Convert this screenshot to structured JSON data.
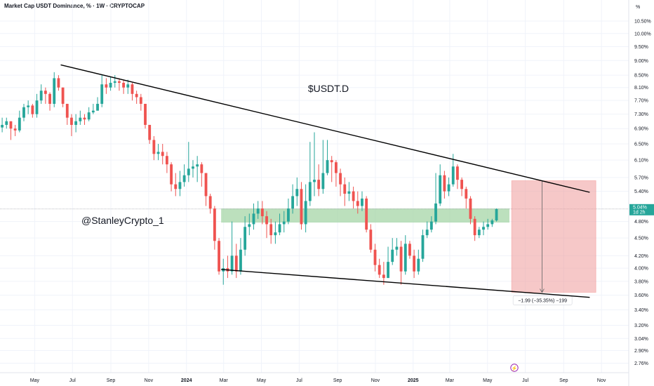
{
  "header": {
    "title": "Market Cap USDT Dominance, % · 1W · CRYPTOCAP"
  },
  "price_axis": {
    "unit_label": "%"
  },
  "annotations": {
    "title": "$USDT.D",
    "handle": "@StanleyCrypto_1",
    "measure_label": "−1.99 (−35.35%) −199"
  },
  "last_price": {
    "value": "5.04%",
    "countdown": "1d 2h"
  },
  "colors": {
    "up": "#26a69a",
    "down": "#ef5350",
    "zone": "#a5d6a7",
    "target": "#ef9a9a",
    "trendline": "#000000"
  },
  "icons": {
    "bottom_marker": "lightning-icon"
  },
  "chart_data": {
    "type": "candlestick",
    "title": "Market Cap USDT Dominance",
    "interval": "1W",
    "y_scale": "log",
    "y_range": [
      2.66,
      11.4
    ],
    "y_ticks": [
      10.5,
      10.0,
      9.5,
      9.0,
      8.5,
      8.1,
      7.7,
      7.3,
      6.9,
      6.5,
      6.1,
      5.7,
      5.4,
      4.8,
      4.5,
      4.2,
      4.0,
      3.8,
      3.6,
      3.4,
      3.2,
      3.04,
      2.9,
      2.76
    ],
    "y_tick_labels": [
      "10.50%",
      "10.00%",
      "9.50%",
      "9.00%",
      "8.50%",
      "8.10%",
      "7.70%",
      "7.30%",
      "6.90%",
      "6.50%",
      "6.10%",
      "5.70%",
      "5.40%",
      "4.80%",
      "4.50%",
      "4.20%",
      "4.00%",
      "3.80%",
      "3.60%",
      "3.40%",
      "3.20%",
      "3.04%",
      "2.90%",
      "2.76%"
    ],
    "x_range": [
      "2023-03-06",
      "2025-12-15"
    ],
    "x_ticks": [
      {
        "label": "May",
        "date": "2023-05-01",
        "bold": false
      },
      {
        "label": "Jul",
        "date": "2023-07-01",
        "bold": false
      },
      {
        "label": "Sep",
        "date": "2023-09-01",
        "bold": false
      },
      {
        "label": "Nov",
        "date": "2023-11-01",
        "bold": false
      },
      {
        "label": "2024",
        "date": "2024-01-01",
        "bold": true
      },
      {
        "label": "Mar",
        "date": "2024-03-01",
        "bold": false
      },
      {
        "label": "May",
        "date": "2024-05-01",
        "bold": false
      },
      {
        "label": "Jul",
        "date": "2024-07-01",
        "bold": false
      },
      {
        "label": "Sep",
        "date": "2024-09-01",
        "bold": false
      },
      {
        "label": "Nov",
        "date": "2024-11-01",
        "bold": false
      },
      {
        "label": "2025",
        "date": "2025-01-01",
        "bold": true
      },
      {
        "label": "Mar",
        "date": "2025-03-01",
        "bold": false
      },
      {
        "label": "May",
        "date": "2025-05-01",
        "bold": false
      },
      {
        "label": "Jul",
        "date": "2025-07-01",
        "bold": false
      },
      {
        "label": "Sep",
        "date": "2025-09-01",
        "bold": false
      },
      {
        "label": "Nov",
        "date": "2025-11-01",
        "bold": false
      }
    ],
    "candles_start": "2023-03-06",
    "candles_step_days": 7,
    "closes": [
      7.0,
      7.1,
      6.9,
      6.85,
      7.2,
      7.5,
      7.55,
      7.3,
      7.7,
      8.0,
      7.9,
      7.6,
      8.4,
      8.1,
      7.6,
      7.2,
      7.0,
      7.1,
      7.2,
      7.15,
      7.35,
      7.4,
      7.6,
      8.2,
      8.1,
      8.25,
      8.3,
      8.25,
      8.1,
      8.2,
      7.9,
      7.8,
      7.6,
      7.0,
      6.6,
      6.25,
      6.3,
      6.2,
      6.0,
      5.55,
      5.45,
      5.6,
      5.75,
      5.9,
      5.95,
      6.0,
      5.8,
      5.3,
      5.05,
      4.45,
      3.95,
      4.0,
      3.95,
      4.2,
      3.95,
      4.3,
      4.7,
      4.75,
      4.95,
      5.05,
      4.9,
      4.75,
      4.55,
      4.6,
      4.75,
      4.8,
      5.05,
      5.3,
      5.45,
      4.75,
      5.2,
      5.6,
      5.65,
      5.45,
      5.8,
      6.1,
      6.05,
      5.8,
      5.55,
      5.35,
      5.4,
      5.2,
      5.1,
      5.25,
      4.65,
      4.3,
      4.05,
      3.9,
      3.85,
      4.1,
      4.3,
      4.35,
      3.95,
      4.4,
      4.2,
      3.95,
      4.15,
      4.55,
      4.65,
      4.8,
      5.15,
      5.75,
      5.4,
      5.55,
      5.95,
      5.65,
      5.45,
      5.25,
      4.85,
      4.55,
      4.65,
      4.7,
      4.75,
      4.82,
      5.04
    ],
    "highs": [
      7.2,
      7.2,
      7.1,
      7.0,
      7.4,
      7.6,
      7.7,
      7.6,
      7.9,
      8.2,
      8.1,
      7.95,
      8.6,
      8.5,
      8.1,
      7.6,
      7.3,
      7.3,
      7.4,
      7.3,
      7.5,
      7.6,
      7.8,
      8.5,
      8.4,
      8.45,
      8.5,
      8.4,
      8.35,
      8.35,
      8.25,
      8.0,
      7.9,
      7.6,
      7.0,
      6.7,
      6.5,
      6.5,
      6.3,
      6.05,
      5.8,
      5.85,
      6.0,
      6.55,
      6.1,
      6.2,
      6.05,
      5.8,
      5.35,
      5.1,
      4.5,
      4.15,
      4.2,
      4.8,
      4.4,
      4.5,
      4.9,
      4.95,
      5.15,
      5.2,
      5.2,
      5.0,
      4.85,
      4.8,
      4.95,
      5.0,
      5.25,
      5.55,
      5.7,
      5.6,
      5.55,
      6.55,
      6.8,
      6.0,
      6.6,
      6.6,
      6.2,
      6.1,
      5.9,
      5.7,
      5.6,
      5.5,
      5.4,
      5.4,
      5.3,
      4.75,
      4.4,
      4.15,
      4.1,
      4.35,
      4.5,
      4.5,
      4.45,
      4.55,
      4.45,
      4.3,
      4.3,
      4.65,
      4.8,
      4.9,
      5.8,
      6.0,
      5.85,
      5.7,
      6.25,
      6.0,
      5.7,
      5.5,
      5.3,
      4.9,
      4.7,
      4.8,
      4.85,
      4.85,
      5.05
    ],
    "lows": [
      6.8,
      6.9,
      6.6,
      6.7,
      6.8,
      7.1,
      7.3,
      7.2,
      7.2,
      7.6,
      7.6,
      7.4,
      7.5,
      8.0,
      7.5,
      7.0,
      6.7,
      6.8,
      7.0,
      7.0,
      7.1,
      7.3,
      7.4,
      7.5,
      7.9,
      8.0,
      8.1,
      8.0,
      7.9,
      7.9,
      7.7,
      7.6,
      7.4,
      6.9,
      6.5,
      6.1,
      6.1,
      6.0,
      5.8,
      5.4,
      5.3,
      5.3,
      5.5,
      5.6,
      5.7,
      5.6,
      5.5,
      5.1,
      4.95,
      4.3,
      3.9,
      3.75,
      3.85,
      3.9,
      3.85,
      3.9,
      4.2,
      4.55,
      4.65,
      4.85,
      4.75,
      4.5,
      4.4,
      4.4,
      4.55,
      4.6,
      4.75,
      4.95,
      5.1,
      4.65,
      4.6,
      5.1,
      5.3,
      5.3,
      5.35,
      5.75,
      5.6,
      5.5,
      5.3,
      5.1,
      5.2,
      5.05,
      4.95,
      5.0,
      4.6,
      4.25,
      3.95,
      3.85,
      3.75,
      3.85,
      4.05,
      4.2,
      3.75,
      3.9,
      4.15,
      3.85,
      3.9,
      4.1,
      4.5,
      4.6,
      4.75,
      5.1,
      5.25,
      5.3,
      5.5,
      5.45,
      5.3,
      5.05,
      4.75,
      4.45,
      4.5,
      4.55,
      4.65,
      4.7,
      4.8
    ],
    "upper_trendline": {
      "from": {
        "date": "2023-06-12",
        "value": 8.85
      },
      "to": {
        "date": "2025-10-13",
        "value": 5.38
      }
    },
    "lower_trendline": {
      "from": {
        "date": "2024-02-26",
        "value": 3.98
      },
      "to": {
        "date": "2025-10-13",
        "value": 3.57
      }
    },
    "support_zone": {
      "from_date": "2024-02-26",
      "to_date": "2025-06-02",
      "low": 4.78,
      "high": 5.05
    },
    "target_box": {
      "from_date": "2025-06-09",
      "to_date": "2025-10-06",
      "top": 5.63,
      "bottom": 3.64,
      "change": -1.99,
      "change_pct": -35.35
    },
    "last_close": 5.04
  }
}
